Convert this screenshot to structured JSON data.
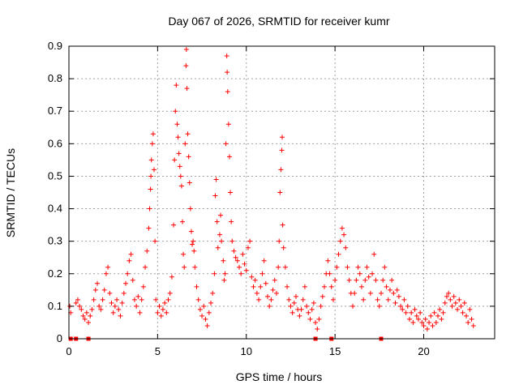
{
  "chart_data": {
    "type": "scatter",
    "title": "Day 067 of 2026, SRMTID for receiver kumr",
    "xlabel": "GPS time / hours",
    "ylabel": "SRMTID / TECUs",
    "xlim": [
      0,
      24
    ],
    "ylim": [
      0,
      0.9
    ],
    "xticks": [
      0,
      5,
      10,
      15,
      20
    ],
    "xtick_labels": [
      "0",
      "5",
      "10",
      "15",
      "20"
    ],
    "yticks": [
      0,
      0.1,
      0.2,
      0.3,
      0.4,
      0.5,
      0.6,
      0.7,
      0.8,
      0.9
    ],
    "ytick_labels": [
      "0",
      "0.1",
      "0.2",
      "0.3",
      "0.4",
      "0.5",
      "0.6",
      "0.7",
      "0.8",
      "0.9"
    ],
    "grid": true,
    "marker": "plus",
    "color": "#ff0000",
    "series": [
      {
        "name": "SRMTID",
        "points": [
          [
            0.05,
            0.1
          ],
          [
            0.1,
            0.08
          ],
          [
            0.4,
            0.11
          ],
          [
            0.5,
            0.12
          ],
          [
            0.6,
            0.1
          ],
          [
            0.7,
            0.09
          ],
          [
            0.8,
            0.07
          ],
          [
            0.9,
            0.06
          ],
          [
            1.0,
            0.08
          ],
          [
            1.1,
            0.05
          ],
          [
            1.2,
            0.07
          ],
          [
            1.3,
            0.09
          ],
          [
            1.4,
            0.12
          ],
          [
            1.5,
            0.15
          ],
          [
            1.6,
            0.17
          ],
          [
            1.7,
            0.1
          ],
          [
            1.8,
            0.09
          ],
          [
            1.9,
            0.12
          ],
          [
            2.0,
            0.15
          ],
          [
            2.1,
            0.2
          ],
          [
            2.2,
            0.22
          ],
          [
            2.3,
            0.14
          ],
          [
            2.4,
            0.11
          ],
          [
            2.5,
            0.08
          ],
          [
            2.6,
            0.1
          ],
          [
            2.7,
            0.12
          ],
          [
            2.8,
            0.09
          ],
          [
            2.9,
            0.07
          ],
          [
            3.0,
            0.11
          ],
          [
            3.1,
            0.14
          ],
          [
            3.2,
            0.17
          ],
          [
            3.3,
            0.2
          ],
          [
            3.4,
            0.24
          ],
          [
            3.5,
            0.26
          ],
          [
            3.6,
            0.18
          ],
          [
            3.7,
            0.12
          ],
          [
            3.8,
            0.1
          ],
          [
            3.9,
            0.13
          ],
          [
            4.0,
            0.08
          ],
          [
            4.1,
            0.12
          ],
          [
            4.2,
            0.16
          ],
          [
            4.3,
            0.22
          ],
          [
            4.4,
            0.27
          ],
          [
            4.5,
            0.34
          ],
          [
            4.55,
            0.4
          ],
          [
            4.6,
            0.46
          ],
          [
            4.62,
            0.5
          ],
          [
            4.65,
            0.55
          ],
          [
            4.7,
            0.6
          ],
          [
            4.75,
            0.63
          ],
          [
            4.8,
            0.52
          ],
          [
            4.85,
            0.3
          ],
          [
            4.9,
            0.12
          ],
          [
            5.0,
            0.08
          ],
          [
            5.1,
            0.1
          ],
          [
            5.2,
            0.07
          ],
          [
            5.3,
            0.09
          ],
          [
            5.4,
            0.11
          ],
          [
            5.5,
            0.08
          ],
          [
            5.6,
            0.12
          ],
          [
            5.7,
            0.14
          ],
          [
            5.8,
            0.19
          ],
          [
            5.9,
            0.35
          ],
          [
            5.95,
            0.55
          ],
          [
            6.0,
            0.7
          ],
          [
            6.05,
            0.78
          ],
          [
            6.1,
            0.66
          ],
          [
            6.15,
            0.62
          ],
          [
            6.2,
            0.57
          ],
          [
            6.25,
            0.53
          ],
          [
            6.3,
            0.5
          ],
          [
            6.35,
            0.47
          ],
          [
            6.4,
            0.36
          ],
          [
            6.45,
            0.26
          ],
          [
            6.5,
            0.22
          ],
          [
            6.55,
            0.6
          ],
          [
            6.6,
            0.84
          ],
          [
            6.62,
            0.89
          ],
          [
            6.65,
            0.77
          ],
          [
            6.7,
            0.63
          ],
          [
            6.75,
            0.56
          ],
          [
            6.8,
            0.48
          ],
          [
            6.85,
            0.4
          ],
          [
            6.9,
            0.33
          ],
          [
            6.95,
            0.29
          ],
          [
            7.0,
            0.3
          ],
          [
            7.05,
            0.27
          ],
          [
            7.1,
            0.22
          ],
          [
            7.2,
            0.16
          ],
          [
            7.3,
            0.12
          ],
          [
            7.4,
            0.09
          ],
          [
            7.5,
            0.07
          ],
          [
            7.6,
            0.1
          ],
          [
            7.7,
            0.06
          ],
          [
            7.8,
            0.04
          ],
          [
            7.9,
            0.08
          ],
          [
            8.0,
            0.11
          ],
          [
            8.1,
            0.14
          ],
          [
            8.2,
            0.2
          ],
          [
            8.25,
            0.44
          ],
          [
            8.3,
            0.49
          ],
          [
            8.35,
            0.36
          ],
          [
            8.4,
            0.28
          ],
          [
            8.5,
            0.32
          ],
          [
            8.55,
            0.38
          ],
          [
            8.6,
            0.3
          ],
          [
            8.7,
            0.24
          ],
          [
            8.75,
            0.18
          ],
          [
            8.8,
            0.2
          ],
          [
            8.85,
            0.6
          ],
          [
            8.9,
            0.87
          ],
          [
            8.92,
            0.82
          ],
          [
            8.95,
            0.76
          ],
          [
            9.0,
            0.66
          ],
          [
            9.05,
            0.56
          ],
          [
            9.1,
            0.45
          ],
          [
            9.15,
            0.36
          ],
          [
            9.2,
            0.3
          ],
          [
            9.3,
            0.27
          ],
          [
            9.4,
            0.25
          ],
          [
            9.5,
            0.24
          ],
          [
            9.6,
            0.22
          ],
          [
            9.7,
            0.2
          ],
          [
            9.8,
            0.26
          ],
          [
            9.9,
            0.23
          ],
          [
            10.0,
            0.21
          ],
          [
            10.1,
            0.28
          ],
          [
            10.2,
            0.3
          ],
          [
            10.3,
            0.19
          ],
          [
            10.4,
            0.16
          ],
          [
            10.5,
            0.18
          ],
          [
            10.6,
            0.14
          ],
          [
            10.7,
            0.12
          ],
          [
            10.8,
            0.16
          ],
          [
            10.9,
            0.2
          ],
          [
            11.0,
            0.24
          ],
          [
            11.1,
            0.17
          ],
          [
            11.2,
            0.13
          ],
          [
            11.3,
            0.1
          ],
          [
            11.4,
            0.12
          ],
          [
            11.5,
            0.15
          ],
          [
            11.6,
            0.18
          ],
          [
            11.7,
            0.14
          ],
          [
            11.8,
            0.22
          ],
          [
            11.85,
            0.3
          ],
          [
            11.9,
            0.45
          ],
          [
            11.95,
            0.52
          ],
          [
            12.0,
            0.58
          ],
          [
            12.02,
            0.62
          ],
          [
            12.05,
            0.35
          ],
          [
            12.1,
            0.28
          ],
          [
            12.2,
            0.22
          ],
          [
            12.3,
            0.16
          ],
          [
            12.4,
            0.12
          ],
          [
            12.5,
            0.1
          ],
          [
            12.6,
            0.08
          ],
          [
            12.7,
            0.11
          ],
          [
            12.8,
            0.13
          ],
          [
            12.9,
            0.09
          ],
          [
            13.0,
            0.07
          ],
          [
            13.1,
            0.09
          ],
          [
            13.2,
            0.12
          ],
          [
            13.3,
            0.16
          ],
          [
            13.4,
            0.1
          ],
          [
            13.5,
            0.08
          ],
          [
            13.6,
            0.06
          ],
          [
            13.7,
            0.09
          ],
          [
            13.8,
            0.11
          ],
          [
            13.9,
            0.05
          ],
          [
            14.0,
            0.03
          ],
          [
            14.1,
            0.06
          ],
          [
            14.2,
            0.1
          ],
          [
            14.3,
            0.13
          ],
          [
            14.4,
            0.16
          ],
          [
            14.5,
            0.2
          ],
          [
            14.6,
            0.24
          ],
          [
            14.7,
            0.2
          ],
          [
            14.8,
            0.16
          ],
          [
            14.9,
            0.12
          ],
          [
            15.0,
            0.18
          ],
          [
            15.1,
            0.22
          ],
          [
            15.2,
            0.26
          ],
          [
            15.3,
            0.3
          ],
          [
            15.4,
            0.34
          ],
          [
            15.5,
            0.32
          ],
          [
            15.6,
            0.28
          ],
          [
            15.7,
            0.22
          ],
          [
            15.8,
            0.18
          ],
          [
            15.9,
            0.14
          ],
          [
            16.0,
            0.1
          ],
          [
            16.1,
            0.14
          ],
          [
            16.2,
            0.18
          ],
          [
            16.3,
            0.22
          ],
          [
            16.4,
            0.2
          ],
          [
            16.5,
            0.16
          ],
          [
            16.6,
            0.12
          ],
          [
            16.7,
            0.18
          ],
          [
            16.8,
            0.22
          ],
          [
            16.9,
            0.19
          ],
          [
            17.0,
            0.14
          ],
          [
            17.1,
            0.2
          ],
          [
            17.2,
            0.26
          ],
          [
            17.3,
            0.18
          ],
          [
            17.4,
            0.12
          ],
          [
            17.5,
            0.1
          ],
          [
            17.6,
            0.14
          ],
          [
            17.7,
            0.18
          ],
          [
            17.8,
            0.22
          ],
          [
            17.9,
            0.16
          ],
          [
            18.0,
            0.12
          ],
          [
            18.1,
            0.15
          ],
          [
            18.2,
            0.18
          ],
          [
            18.3,
            0.14
          ],
          [
            18.4,
            0.11
          ],
          [
            18.5,
            0.15
          ],
          [
            18.6,
            0.13
          ],
          [
            18.7,
            0.1
          ],
          [
            18.8,
            0.09
          ],
          [
            18.9,
            0.12
          ],
          [
            19.0,
            0.08
          ],
          [
            19.1,
            0.1
          ],
          [
            19.2,
            0.06
          ],
          [
            19.3,
            0.08
          ],
          [
            19.4,
            0.05
          ],
          [
            19.5,
            0.09
          ],
          [
            19.6,
            0.07
          ],
          [
            19.7,
            0.06
          ],
          [
            19.8,
            0.08
          ],
          [
            19.9,
            0.05
          ],
          [
            20.0,
            0.04
          ],
          [
            20.1,
            0.06
          ],
          [
            20.2,
            0.03
          ],
          [
            20.3,
            0.05
          ],
          [
            20.4,
            0.07
          ],
          [
            20.5,
            0.04
          ],
          [
            20.6,
            0.08
          ],
          [
            20.7,
            0.05
          ],
          [
            20.8,
            0.07
          ],
          [
            20.9,
            0.09
          ],
          [
            21.0,
            0.06
          ],
          [
            21.1,
            0.08
          ],
          [
            21.2,
            0.11
          ],
          [
            21.3,
            0.13
          ],
          [
            21.4,
            0.14
          ],
          [
            21.5,
            0.12
          ],
          [
            21.6,
            0.1
          ],
          [
            21.7,
            0.13
          ],
          [
            21.8,
            0.11
          ],
          [
            21.9,
            0.09
          ],
          [
            22.0,
            0.12
          ],
          [
            22.1,
            0.1
          ],
          [
            22.2,
            0.08
          ],
          [
            22.3,
            0.11
          ],
          [
            22.4,
            0.07
          ],
          [
            22.5,
            0.05
          ],
          [
            22.6,
            0.09
          ],
          [
            22.7,
            0.06
          ],
          [
            22.8,
            0.04
          ]
        ]
      }
    ],
    "zero_markers_x": [
      0.1,
      0.4,
      1.1,
      13.9,
      14.8,
      17.6
    ]
  }
}
